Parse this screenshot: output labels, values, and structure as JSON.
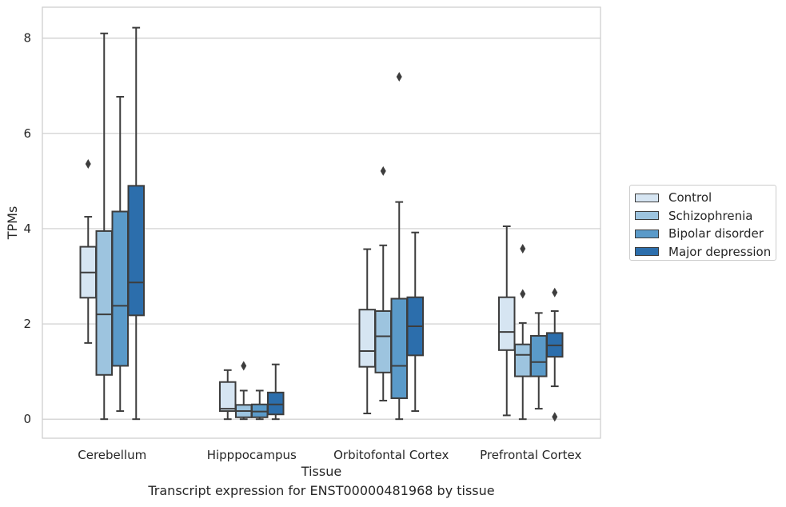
{
  "chart_data": {
    "type": "box",
    "title": "",
    "xlabel": "Tissue",
    "ylabel": "TPMs",
    "caption": "Transcript expression for ENST00000481968 by tissue",
    "ylim": [
      -0.4,
      8.65
    ],
    "yticks": [
      0,
      2,
      4,
      6,
      8
    ],
    "grid": "horizontal",
    "legend_position": "right",
    "categories": [
      "Cerebellum",
      "Hipppocampus",
      "Orbitofontal Cortex",
      "Prefrontal Cortex"
    ],
    "series": [
      {
        "name": "Control",
        "color": "#d6e5f2",
        "boxes": [
          {
            "whisker_low": 1.6,
            "q1": 2.55,
            "median": 3.08,
            "q3": 3.62,
            "whisker_high": 4.25,
            "outliers": [
              5.36
            ]
          },
          {
            "whisker_low": 0.0,
            "q1": 0.17,
            "median": 0.22,
            "q3": 0.78,
            "whisker_high": 1.03,
            "outliers": []
          },
          {
            "whisker_low": 0.12,
            "q1": 1.1,
            "median": 1.43,
            "q3": 2.3,
            "whisker_high": 3.57,
            "outliers": []
          },
          {
            "whisker_low": 0.08,
            "q1": 1.45,
            "median": 1.83,
            "q3": 2.56,
            "whisker_high": 4.05,
            "outliers": []
          }
        ]
      },
      {
        "name": "Schizophrenia",
        "color": "#9dc4df",
        "boxes": [
          {
            "whisker_low": 0.0,
            "q1": 0.93,
            "median": 2.2,
            "q3": 3.95,
            "whisker_high": 8.1,
            "outliers": []
          },
          {
            "whisker_low": 0.0,
            "q1": 0.04,
            "median": 0.17,
            "q3": 0.3,
            "whisker_high": 0.6,
            "outliers": [
              1.12
            ]
          },
          {
            "whisker_low": 0.39,
            "q1": 0.98,
            "median": 1.74,
            "q3": 2.27,
            "whisker_high": 3.65,
            "outliers": [
              5.21
            ]
          },
          {
            "whisker_low": 0.0,
            "q1": 0.9,
            "median": 1.35,
            "q3": 1.57,
            "whisker_high": 2.02,
            "outliers": [
              2.63,
              3.58
            ]
          }
        ]
      },
      {
        "name": "Bipolar disorder",
        "color": "#5a9ac9",
        "boxes": [
          {
            "whisker_low": 0.17,
            "q1": 1.12,
            "median": 2.38,
            "q3": 4.36,
            "whisker_high": 6.77,
            "outliers": []
          },
          {
            "whisker_low": 0.0,
            "q1": 0.04,
            "median": 0.16,
            "q3": 0.31,
            "whisker_high": 0.6,
            "outliers": []
          },
          {
            "whisker_low": 0.0,
            "q1": 0.44,
            "median": 1.12,
            "q3": 2.53,
            "whisker_high": 4.56,
            "outliers": [
              7.19
            ]
          },
          {
            "whisker_low": 0.22,
            "q1": 0.9,
            "median": 1.2,
            "q3": 1.75,
            "whisker_high": 2.23,
            "outliers": []
          }
        ]
      },
      {
        "name": "Major depression",
        "color": "#2c6eac",
        "boxes": [
          {
            "whisker_low": 0.0,
            "q1": 2.18,
            "median": 2.87,
            "q3": 4.9,
            "whisker_high": 8.22,
            "outliers": []
          },
          {
            "whisker_low": 0.0,
            "q1": 0.1,
            "median": 0.31,
            "q3": 0.56,
            "whisker_high": 1.15,
            "outliers": []
          },
          {
            "whisker_low": 0.17,
            "q1": 1.34,
            "median": 1.95,
            "q3": 2.56,
            "whisker_high": 3.92,
            "outliers": []
          },
          {
            "whisker_low": 0.69,
            "q1": 1.31,
            "median": 1.55,
            "q3": 1.81,
            "whisker_high": 2.27,
            "outliers": [
              0.05,
              2.66
            ]
          }
        ]
      }
    ]
  }
}
